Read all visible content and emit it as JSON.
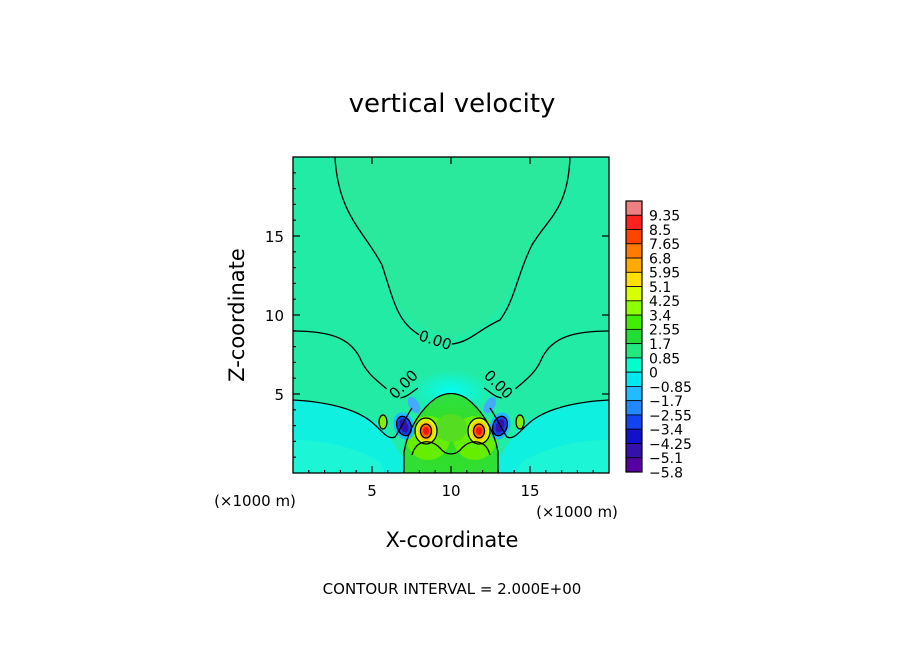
{
  "chart_data": {
    "type": "heatmap",
    "title": "vertical velocity",
    "xlabel": "X-coordinate",
    "ylabel": "Z-coordinate",
    "x_unit_label": "(×1000 m)",
    "y_unit_label": "(×1000 m)",
    "xlim": [
      0,
      20
    ],
    "ylim": [
      0,
      20
    ],
    "x_ticks": [
      {
        "value": 5,
        "label": "5"
      },
      {
        "value": 10,
        "label": "10"
      },
      {
        "value": 15,
        "label": "15"
      }
    ],
    "y_ticks": [
      {
        "value": 5,
        "label": "5"
      },
      {
        "value": 10,
        "label": "10"
      },
      {
        "value": 15,
        "label": "15"
      }
    ],
    "contour_interval_text": "CONTOUR INTERVAL = 2.000E+00",
    "contour_labels": [
      {
        "text": "0.00",
        "x": 9.0,
        "z": 8.4
      },
      {
        "text": "0.00",
        "x": 7.0,
        "z": 5.6
      },
      {
        "text": "0.00",
        "x": 13.0,
        "z": 5.6
      }
    ],
    "colorbar": {
      "labels": [
        "9.35",
        "8.5",
        "7.65",
        "6.8",
        "5.95",
        "5.1",
        "4.25",
        "3.4",
        "2.55",
        "1.7",
        "0.85",
        "0",
        "−0.85",
        "−1.7",
        "−2.55",
        "−3.4",
        "−4.25",
        "−5.1",
        "−5.8"
      ],
      "colors": [
        "#f08080",
        "#ff2020",
        "#ff4400",
        "#ff7a00",
        "#ffaa00",
        "#ffe000",
        "#d8ff00",
        "#8cff00",
        "#40ee00",
        "#22dd33",
        "#22e880",
        "#00ffcc",
        "#00e8f0",
        "#22bbff",
        "#2288ff",
        "#1144ee",
        "#1111cc",
        "#3311aa",
        "#5500a0"
      ]
    },
    "background_color": "#22e8a2",
    "notable_features": [
      {
        "kind": "max",
        "x": 8.4,
        "z": 2.7,
        "value": 9.35
      },
      {
        "kind": "max",
        "x": 11.6,
        "z": 2.7,
        "value": 9.35
      },
      {
        "kind": "min",
        "x": 7.0,
        "z": 2.9,
        "value": -5.8
      },
      {
        "kind": "min",
        "x": 13.0,
        "z": 2.9,
        "value": -5.8
      }
    ]
  }
}
